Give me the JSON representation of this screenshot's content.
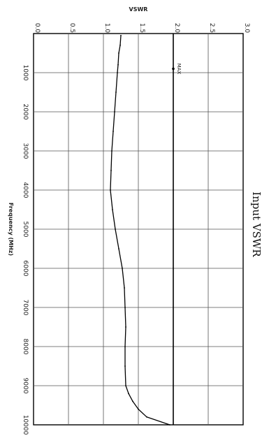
{
  "chart_data": {
    "type": "line",
    "title": "Input VSWR",
    "xlabel": "Frequency (MHz)",
    "ylabel": "VSWR",
    "orientation": "rotated-90-clockwise",
    "xlim": [
      0,
      10000
    ],
    "ylim": [
      0.0,
      3.0
    ],
    "x_ticks": [
      "1000",
      "2000",
      "3000",
      "4000",
      "5000",
      "6000",
      "7000",
      "8000",
      "9000",
      "10000"
    ],
    "y_ticks": [
      "0.0",
      "0.5",
      "1.0",
      "1.5",
      "2.0",
      "2.5",
      "3.0"
    ],
    "grid": true,
    "series": [
      {
        "x": [
          50,
          300,
          500,
          800,
          1000,
          1500,
          2000,
          2500,
          3000,
          3500,
          4000,
          4500,
          5000,
          5500,
          6000,
          6500,
          7000,
          7500,
          8000,
          8500,
          9000,
          9200,
          9400,
          9600,
          9800,
          10000
        ],
        "values": [
          1.25,
          1.24,
          1.22,
          1.21,
          1.2,
          1.18,
          1.16,
          1.14,
          1.12,
          1.11,
          1.1,
          1.13,
          1.17,
          1.22,
          1.27,
          1.3,
          1.31,
          1.32,
          1.31,
          1.31,
          1.32,
          1.36,
          1.42,
          1.5,
          1.62,
          1.95
        ],
        "color": "#000000"
      }
    ],
    "limit_line": {
      "label": "MAX",
      "value": 2.0
    }
  }
}
